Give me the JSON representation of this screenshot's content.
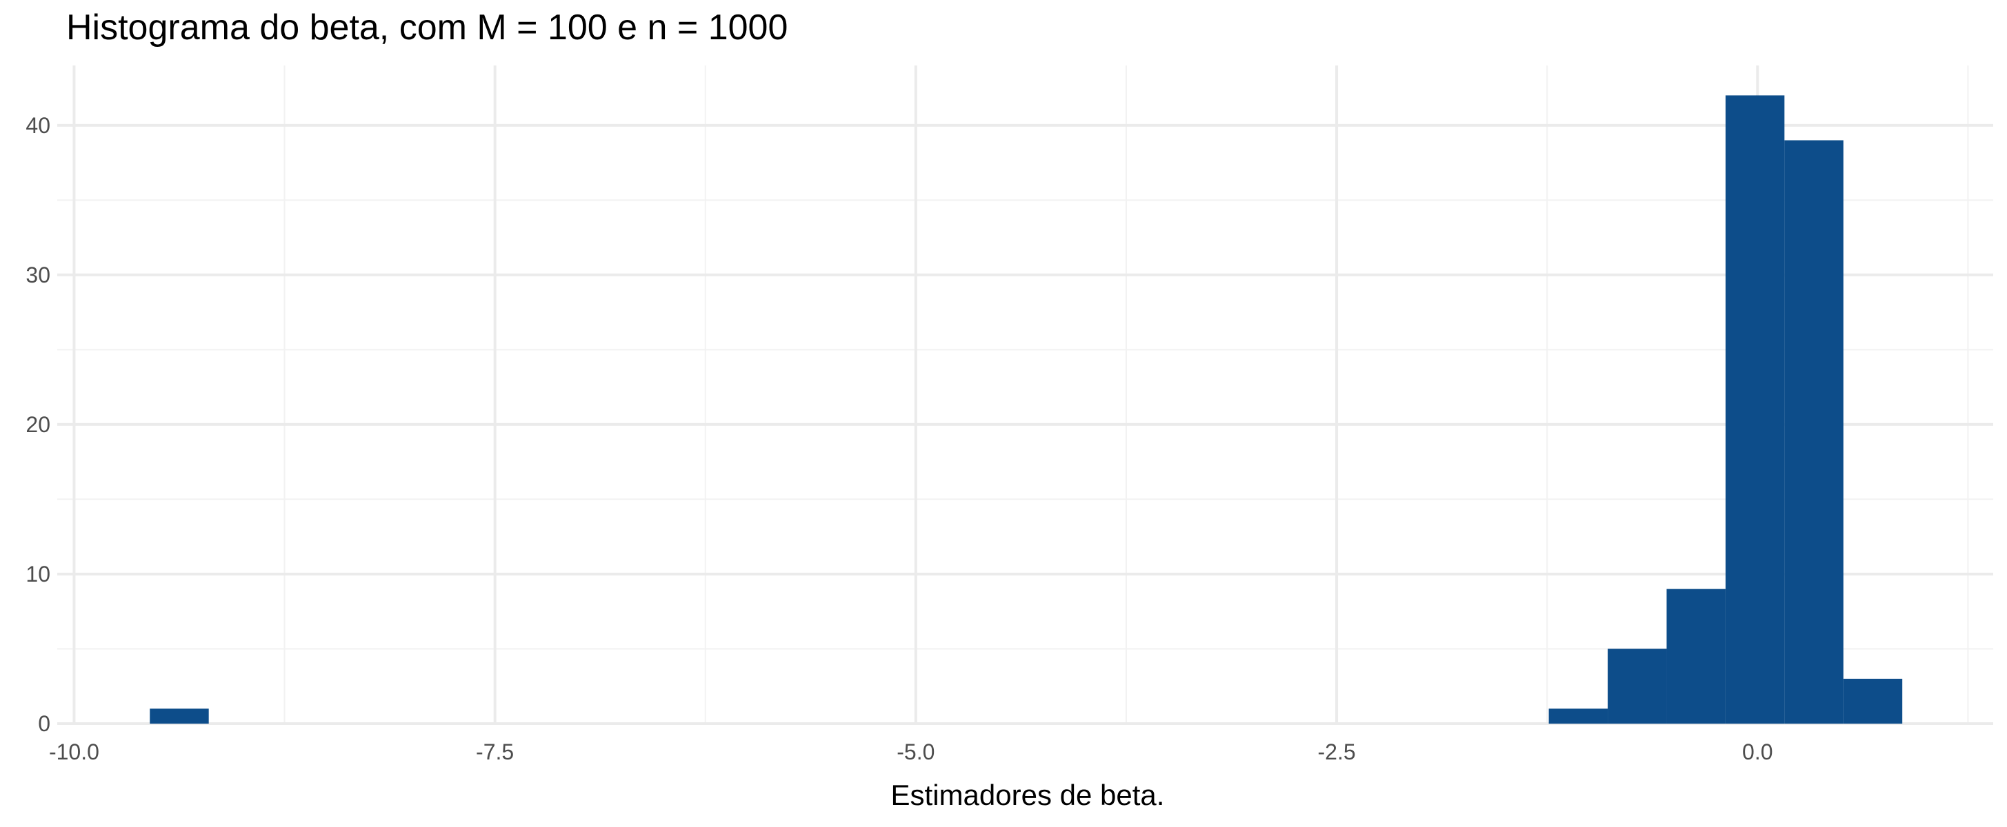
{
  "chart_data": {
    "type": "bar",
    "title": "Histograma do beta, com M = 100 e n = 1000",
    "xlabel": "Estimadores de beta.",
    "ylabel": "",
    "xlim": [
      -10.1,
      1.4
    ],
    "ylim": [
      0,
      44
    ],
    "x_ticks": [
      -10.0,
      -7.5,
      -5.0,
      -2.5,
      0.0
    ],
    "x_tick_labels": [
      "-10.0",
      "-7.5",
      "-5.0",
      "-2.5",
      "0.0"
    ],
    "y_ticks": [
      0,
      10,
      20,
      30,
      40
    ],
    "y_tick_labels": [
      "0",
      "10",
      "20",
      "30",
      "40"
    ],
    "x_minor_ticks": [
      -8.75,
      -6.25,
      -3.75,
      -1.25,
      1.25
    ],
    "y_minor_ticks": [
      5,
      15,
      25,
      35
    ],
    "bins": [
      {
        "x0": -9.55,
        "x1": -9.2,
        "count": 1
      },
      {
        "x0": -1.24,
        "x1": -0.89,
        "count": 1
      },
      {
        "x0": -0.89,
        "x1": -0.54,
        "count": 5
      },
      {
        "x0": -0.54,
        "x1": -0.19,
        "count": 9
      },
      {
        "x0": -0.19,
        "x1": 0.16,
        "count": 42
      },
      {
        "x0": 0.16,
        "x1": 0.51,
        "count": 39
      },
      {
        "x0": 0.51,
        "x1": 0.86,
        "count": 3
      }
    ],
    "fill_color": "#0d4d8a",
    "grid": true
  }
}
